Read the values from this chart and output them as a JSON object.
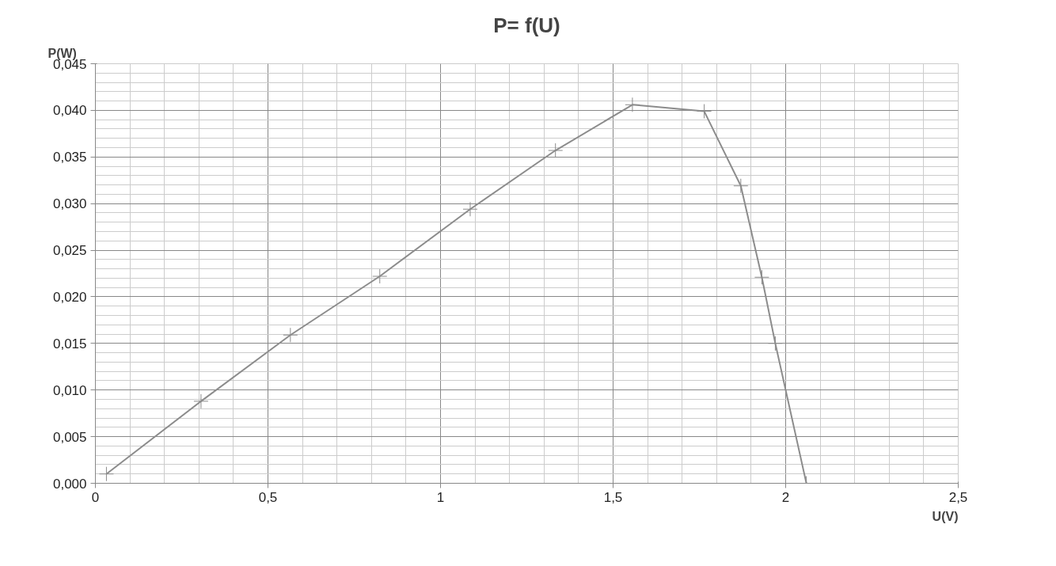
{
  "chart_data": {
    "type": "line",
    "title": "P= f(U)",
    "xlabel": "U(V)",
    "ylabel": "P(W)",
    "x": [
      0.032,
      0.306,
      0.565,
      0.824,
      1.086,
      1.333,
      1.556,
      1.764,
      1.87,
      1.931,
      1.97,
      2.06
    ],
    "series": [
      {
        "color": "#8c8c8c",
        "values": [
          0.001,
          0.0088,
          0.0159,
          0.0222,
          0.0294,
          0.0357,
          0.0406,
          0.0399,
          0.0319,
          0.0221,
          0.015,
          0.0
        ]
      }
    ],
    "xlim": [
      0,
      2.5
    ],
    "ylim": [
      0,
      0.045
    ],
    "xticks": [
      0,
      {
        "value": 0.5,
        "label": "0,5"
      },
      1,
      {
        "value": 1.5,
        "label": "1,5"
      },
      2,
      {
        "value": 2.5,
        "label": "2,5"
      }
    ],
    "yticks": [
      {
        "value": 0,
        "label": "0,000"
      },
      {
        "value": 0.005,
        "label": "0,005"
      },
      {
        "value": 0.01,
        "label": "0,010"
      },
      {
        "value": 0.015,
        "label": "0,015"
      },
      {
        "value": 0.02,
        "label": "0,020"
      },
      {
        "value": 0.025,
        "label": "0,025"
      },
      {
        "value": 0.03,
        "label": "0,030"
      },
      {
        "value": 0.035,
        "label": "0,035"
      },
      {
        "value": 0.04,
        "label": "0,040"
      },
      {
        "value": 0.045,
        "label": "0,045"
      }
    ],
    "grid": true,
    "marker": "cross",
    "line_style": "solid"
  }
}
